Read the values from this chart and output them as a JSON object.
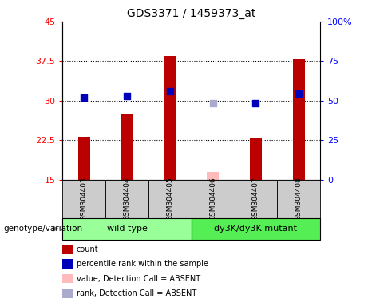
{
  "title": "GDS3371 / 1459373_at",
  "samples": [
    "GSM304403",
    "GSM304404",
    "GSM304405",
    "GSM304406",
    "GSM304407",
    "GSM304408"
  ],
  "bar_values": [
    23.2,
    27.5,
    38.5,
    16.5,
    23.0,
    37.8
  ],
  "bar_absent": [
    false,
    false,
    false,
    true,
    false,
    false
  ],
  "dot_values": [
    30.5,
    30.8,
    31.8,
    29.5,
    29.5,
    31.3
  ],
  "dot_absent": [
    false,
    false,
    false,
    true,
    false,
    false
  ],
  "ylim_left": [
    15,
    45
  ],
  "ylim_right": [
    0,
    100
  ],
  "yticks_left": [
    15,
    22.5,
    30,
    37.5,
    45
  ],
  "ytick_labels_left": [
    "15",
    "22.5",
    "30",
    "37.5",
    "45"
  ],
  "yticks_right": [
    0,
    25,
    50,
    75,
    100
  ],
  "ytick_labels_right": [
    "0",
    "25",
    "50",
    "75",
    "100%"
  ],
  "hgrid_lines": [
    22.5,
    30,
    37.5
  ],
  "bar_color": "#bb0000",
  "bar_absent_color": "#ffbbbb",
  "dot_color": "#0000bb",
  "dot_absent_color": "#aaaacc",
  "group1_label": "wild type",
  "group2_label": "dy3K/dy3K mutant",
  "group1_color": "#99ff99",
  "group2_color": "#55ee55",
  "group1_samples": [
    0,
    1,
    2
  ],
  "group2_samples": [
    3,
    4,
    5
  ],
  "sample_box_color": "#cccccc",
  "genotype_label": "genotype/variation",
  "legend_items": [
    {
      "label": "count",
      "color": "#bb0000"
    },
    {
      "label": "percentile rank within the sample",
      "color": "#0000bb"
    },
    {
      "label": "value, Detection Call = ABSENT",
      "color": "#ffbbbb"
    },
    {
      "label": "rank, Detection Call = ABSENT",
      "color": "#aaaacc"
    }
  ],
  "bar_width": 0.28,
  "dot_size": 35,
  "figsize": [
    4.61,
    3.84
  ],
  "dpi": 100
}
